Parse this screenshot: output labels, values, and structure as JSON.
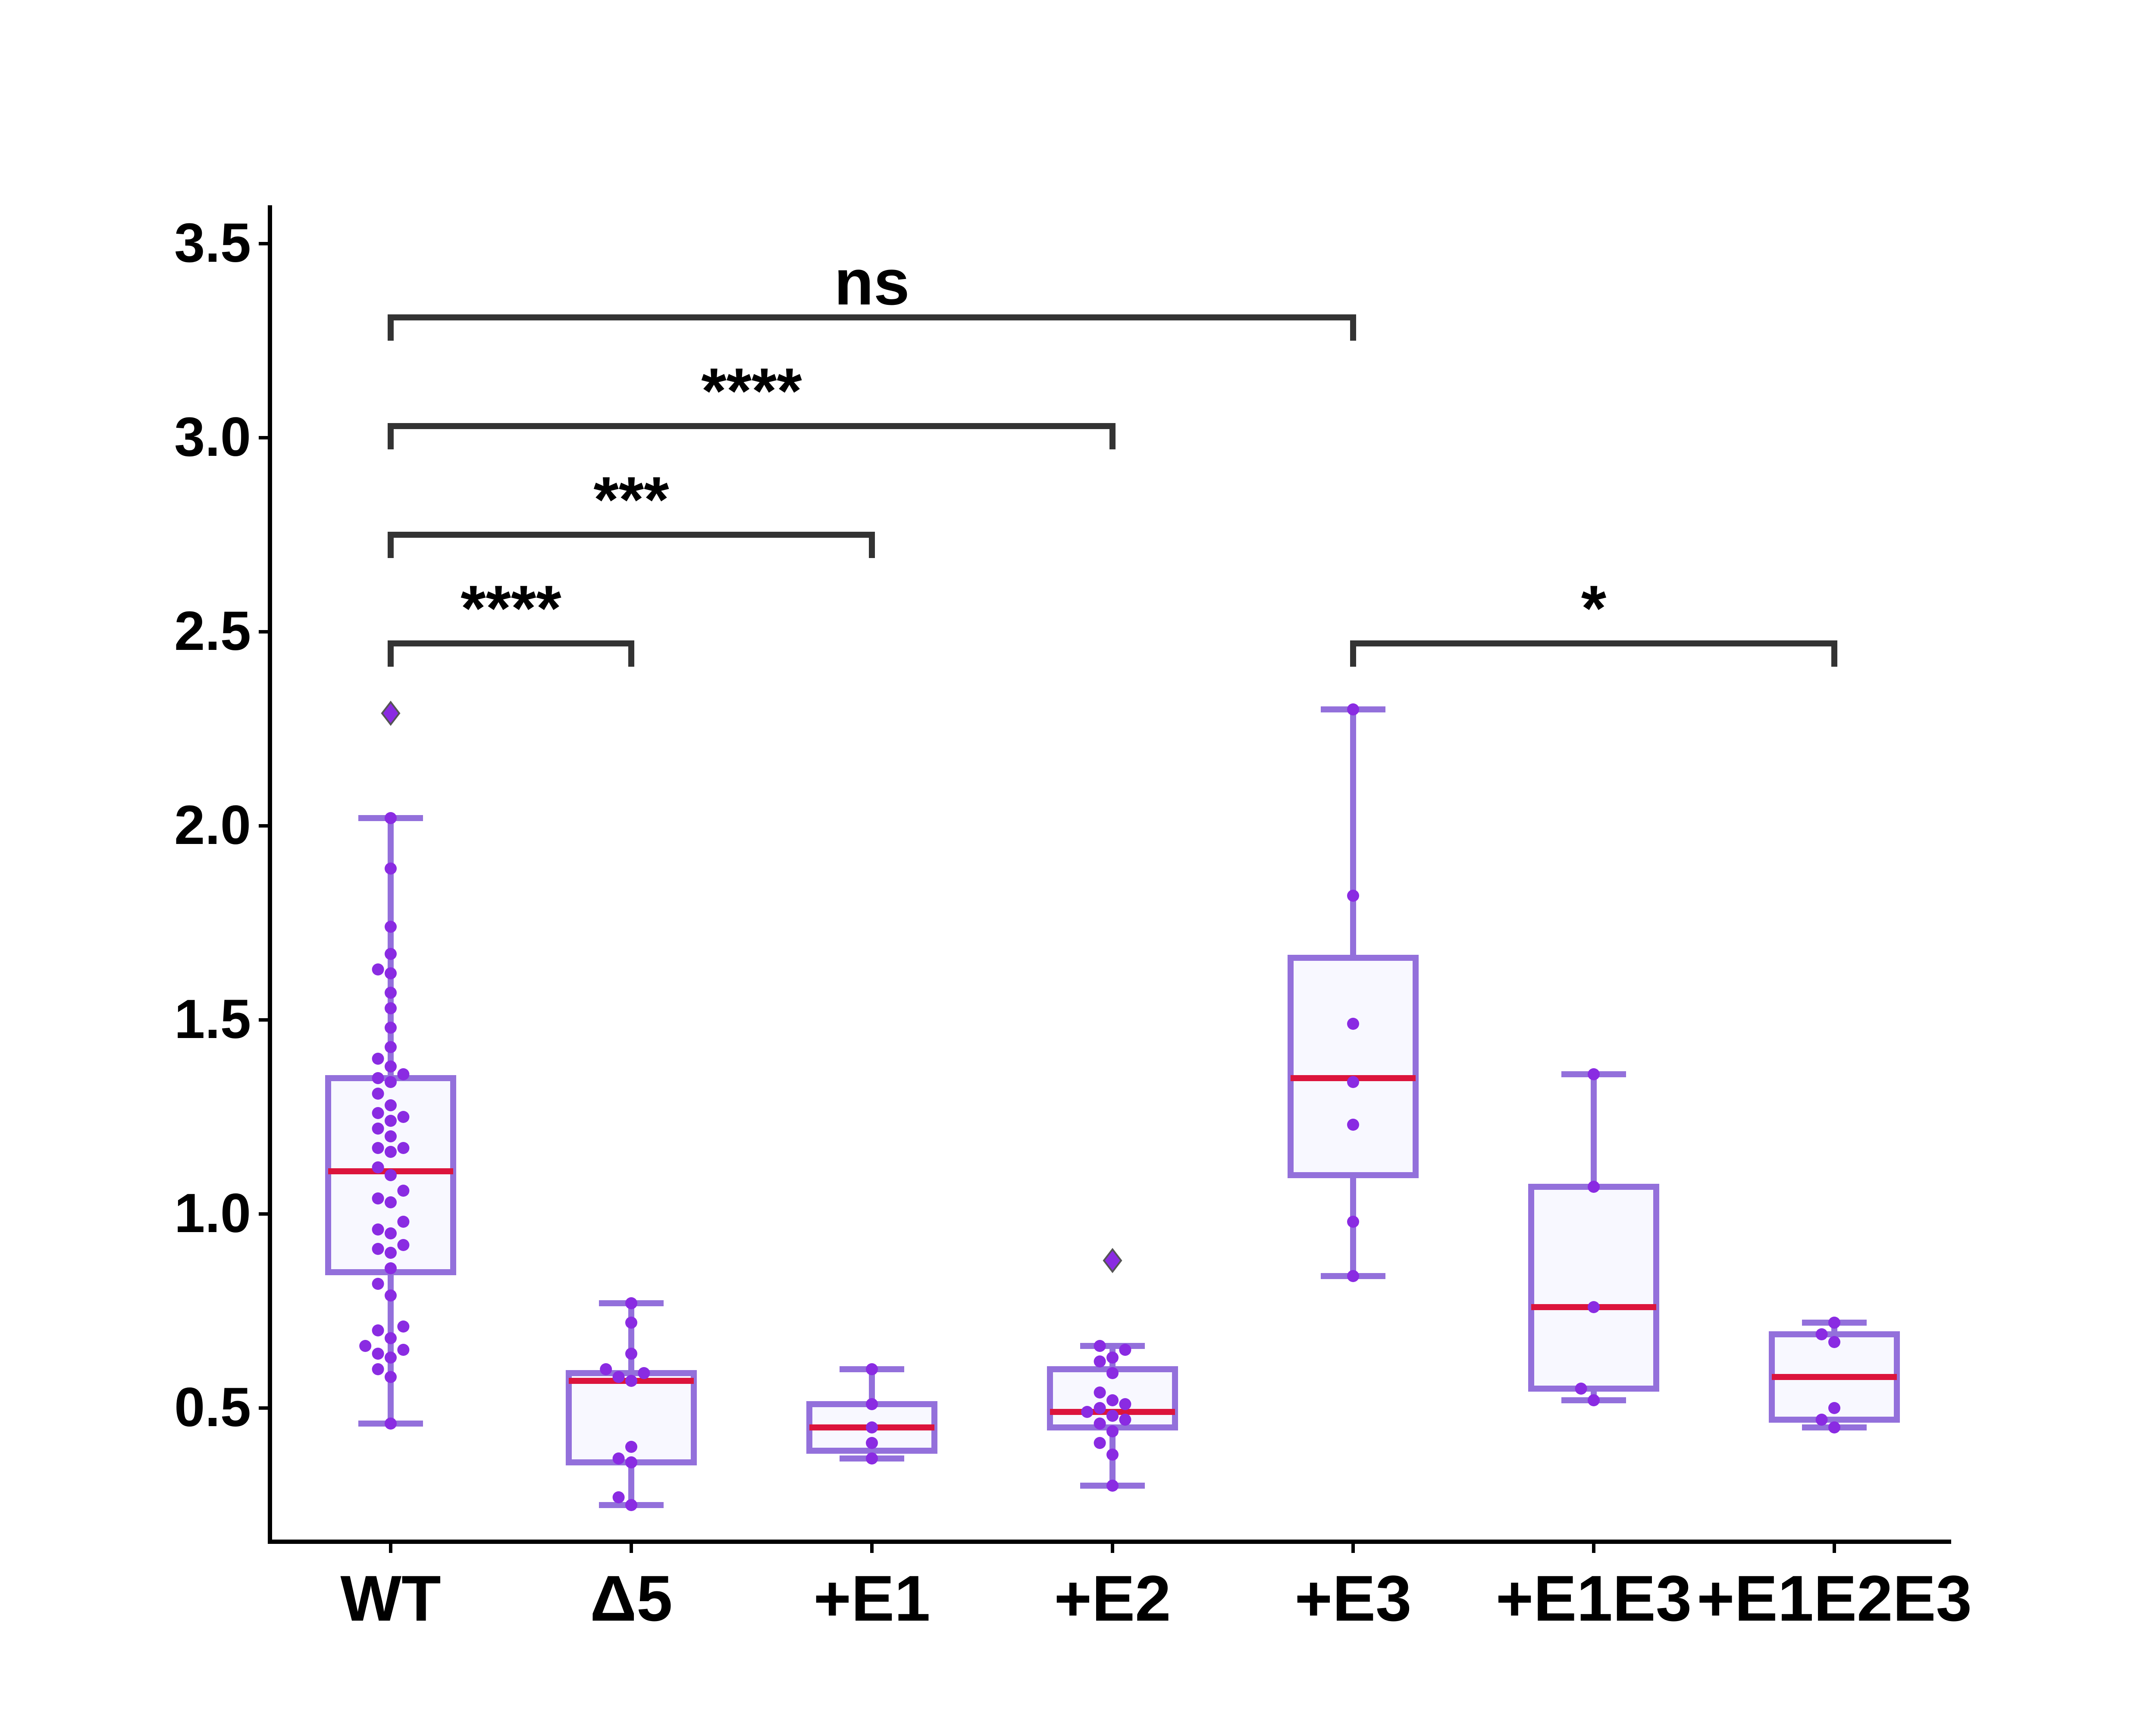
{
  "chart_data": {
    "type": "box",
    "title": "",
    "xlabel": "",
    "ylabel": "",
    "categories": [
      "WT",
      "Δ5",
      "+E1",
      "+E2",
      "+E3",
      "+E1E3",
      "+E1E2E3"
    ],
    "ylim": [
      0.2,
      3.6
    ],
    "yticks": [
      "0.5",
      "1.0",
      "1.5",
      "2.0",
      "2.5",
      "3.0",
      "3.5"
    ],
    "grid": false,
    "legend": "none",
    "colors": {
      "box_edge": "#9370db",
      "box_fill": "#f8f8ff",
      "median": "#dc143c",
      "points": "#8a2be2",
      "outlier_edge": "#555555",
      "bracket": "#333333"
    },
    "boxes": [
      {
        "name": "WT",
        "q1": 0.85,
        "median": 1.11,
        "q3": 1.35,
        "whisker_low": 0.46,
        "whisker_high": 2.02,
        "outliers": [
          2.29
        ],
        "points": [
          0.46,
          0.58,
          0.6,
          0.63,
          0.64,
          0.65,
          0.66,
          0.68,
          0.7,
          0.71,
          0.79,
          0.82,
          0.86,
          0.9,
          0.91,
          0.92,
          0.95,
          0.96,
          0.98,
          1.03,
          1.04,
          1.06,
          1.1,
          1.12,
          1.16,
          1.17,
          1.17,
          1.2,
          1.22,
          1.24,
          1.25,
          1.26,
          1.28,
          1.31,
          1.34,
          1.35,
          1.36,
          1.38,
          1.4,
          1.43,
          1.48,
          1.53,
          1.57,
          1.62,
          1.63,
          1.67,
          1.74,
          1.89,
          2.02
        ]
      },
      {
        "name": "Δ5",
        "q1": 0.36,
        "median": 0.57,
        "q3": 0.59,
        "whisker_low": 0.25,
        "whisker_high": 0.77,
        "outliers": [],
        "points": [
          0.25,
          0.27,
          0.36,
          0.37,
          0.4,
          0.57,
          0.58,
          0.59,
          0.6,
          0.64,
          0.72,
          0.77
        ]
      },
      {
        "name": "+E1",
        "q1": 0.39,
        "median": 0.45,
        "q3": 0.51,
        "whisker_low": 0.37,
        "whisker_high": 0.6,
        "outliers": [],
        "points": [
          0.37,
          0.41,
          0.45,
          0.51,
          0.6
        ]
      },
      {
        "name": "+E2",
        "q1": 0.45,
        "median": 0.49,
        "q3": 0.6,
        "whisker_low": 0.3,
        "whisker_high": 0.66,
        "outliers": [
          0.88
        ],
        "points": [
          0.3,
          0.38,
          0.41,
          0.44,
          0.46,
          0.47,
          0.48,
          0.49,
          0.5,
          0.51,
          0.52,
          0.54,
          0.59,
          0.62,
          0.63,
          0.65,
          0.66
        ]
      },
      {
        "name": "+E3",
        "q1": 1.1,
        "median": 1.35,
        "q3": 1.66,
        "whisker_low": 0.84,
        "whisker_high": 2.3,
        "outliers": [],
        "points": [
          0.84,
          0.98,
          1.23,
          1.34,
          1.49,
          1.82,
          2.3
        ]
      },
      {
        "name": "+E1E3",
        "q1": 0.55,
        "median": 0.76,
        "q3": 1.07,
        "whisker_low": 0.52,
        "whisker_high": 1.36,
        "outliers": [],
        "points": [
          0.52,
          0.55,
          0.76,
          1.07,
          1.36
        ]
      },
      {
        "name": "+E1E2E3",
        "q1": 0.47,
        "median": 0.58,
        "q3": 0.69,
        "whisker_low": 0.45,
        "whisker_high": 0.72,
        "outliers": [],
        "points": [
          0.45,
          0.47,
          0.5,
          0.67,
          0.69,
          0.72
        ]
      }
    ],
    "annotations": [
      {
        "from": "WT",
        "to": "+E3",
        "y": 3.31,
        "label": "ns"
      },
      {
        "from": "WT",
        "to": "Δ5",
        "y": 2.47,
        "label": "****"
      },
      {
        "from": "WT",
        "to": "+E1",
        "y": 2.75,
        "label": "***"
      },
      {
        "from": "WT",
        "to": "+E2",
        "y": 3.03,
        "label": "****"
      },
      {
        "from": "+E3",
        "to": "+E1E2E3",
        "y": 2.47,
        "label": "*"
      }
    ]
  }
}
